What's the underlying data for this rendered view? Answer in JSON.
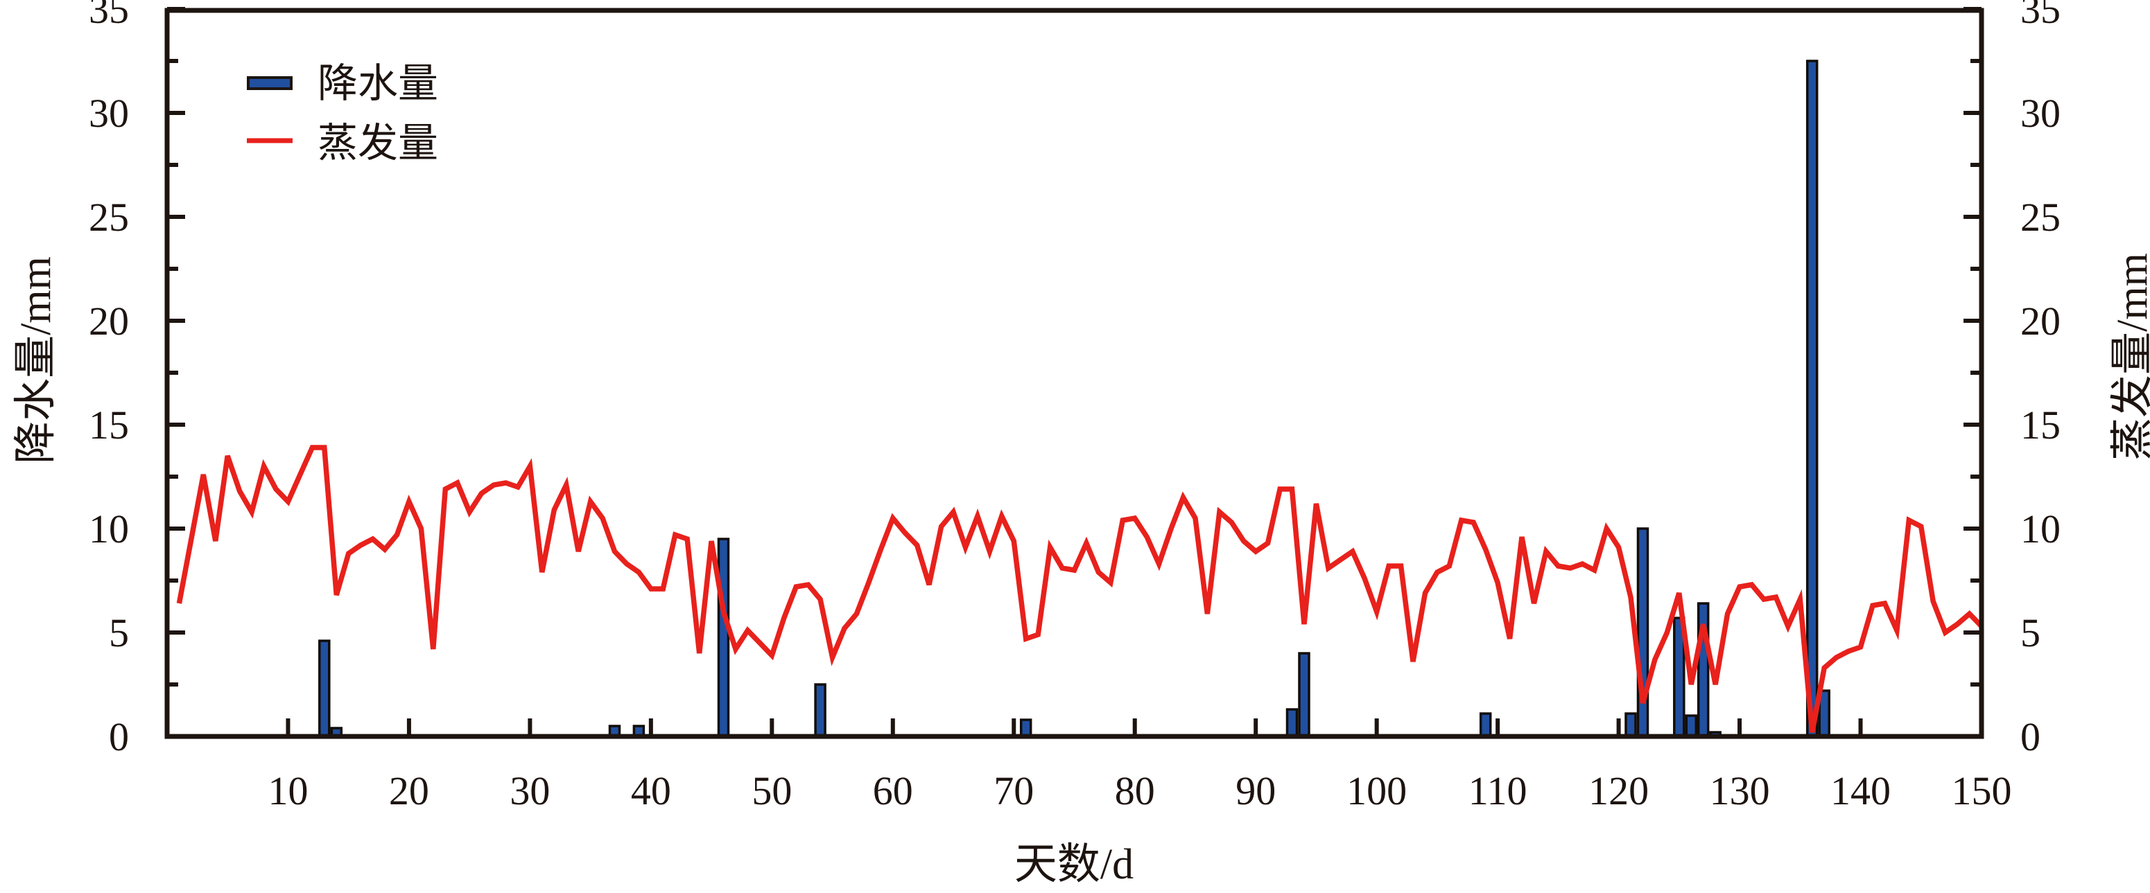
{
  "chart_data": {
    "type": "bar+line",
    "title": "",
    "xlabel": "天数/d",
    "ylabel_left": "降水量/mm",
    "ylabel_right": "蒸发量/mm",
    "xlim": [
      0,
      150
    ],
    "ylim_left": [
      0,
      35
    ],
    "ylim_right": [
      0,
      35
    ],
    "xticks": [
      10,
      20,
      30,
      40,
      50,
      60,
      70,
      80,
      90,
      100,
      110,
      120,
      130,
      140,
      150
    ],
    "yticks_major": [
      0,
      5,
      10,
      15,
      20,
      25,
      30,
      35
    ],
    "yticks_minor": [
      2.5,
      7.5,
      12.5,
      17.5,
      22.5,
      27.5,
      32.5
    ],
    "grid": "off",
    "frame": "full-box, ticks pointing inward",
    "legend_position": "upper-left inside plot",
    "series": [
      {
        "name": "降水量",
        "type": "bar",
        "axis": "left",
        "color": "#2150a0",
        "points": [
          {
            "day": 13,
            "value": 4.6
          },
          {
            "day": 14,
            "value": 0.4
          },
          {
            "day": 37,
            "value": 0.5
          },
          {
            "day": 39,
            "value": 0.5
          },
          {
            "day": 46,
            "value": 9.5
          },
          {
            "day": 54,
            "value": 2.5
          },
          {
            "day": 71,
            "value": 0.8
          },
          {
            "day": 93,
            "value": 1.3
          },
          {
            "day": 94,
            "value": 4.0
          },
          {
            "day": 109,
            "value": 1.1
          },
          {
            "day": 121,
            "value": 1.1
          },
          {
            "day": 122,
            "value": 10.0
          },
          {
            "day": 125,
            "value": 5.7
          },
          {
            "day": 126,
            "value": 1.0
          },
          {
            "day": 127,
            "value": 6.4
          },
          {
            "day": 128,
            "value": 0.2
          },
          {
            "day": 136,
            "value": 32.5
          },
          {
            "day": 137,
            "value": 2.2
          }
        ]
      },
      {
        "name": "蒸发量",
        "type": "line",
        "axis": "right",
        "color": "#e8211c",
        "x_start_day": 1,
        "values": [
          6.4,
          9.5,
          12.6,
          9.4,
          13.5,
          11.8,
          10.8,
          13.0,
          11.9,
          11.3,
          12.6,
          13.9,
          13.9,
          6.8,
          8.8,
          9.2,
          9.5,
          9.0,
          9.7,
          11.3,
          10.0,
          4.2,
          11.9,
          12.2,
          10.8,
          11.7,
          12.1,
          12.2,
          12.0,
          13.0,
          7.9,
          10.9,
          12.1,
          8.9,
          11.3,
          10.5,
          8.9,
          8.3,
          7.9,
          7.1,
          7.1,
          9.7,
          9.5,
          4.0,
          9.4,
          6.0,
          4.2,
          5.1,
          4.5,
          3.9,
          5.7,
          7.2,
          7.3,
          6.6,
          3.8,
          5.2,
          5.9,
          7.4,
          9.0,
          10.5,
          9.8,
          9.2,
          7.3,
          10.1,
          10.8,
          9.1,
          10.6,
          8.9,
          10.6,
          9.4,
          4.7,
          4.9,
          9.1,
          8.1,
          8.0,
          9.3,
          7.9,
          7.4,
          10.4,
          10.5,
          9.6,
          8.3,
          10.0,
          11.5,
          10.5,
          5.9,
          10.8,
          10.3,
          9.4,
          8.9,
          9.3,
          11.9,
          11.9,
          5.4,
          11.2,
          8.1,
          8.5,
          8.9,
          7.6,
          6.0,
          8.2,
          8.2,
          3.6,
          6.9,
          7.9,
          8.2,
          10.4,
          10.3,
          9.0,
          7.4,
          4.7,
          9.6,
          6.4,
          8.9,
          8.2,
          8.1,
          8.3,
          8.0,
          10.0,
          9.1,
          6.7,
          1.6,
          3.7,
          5.0,
          6.9,
          2.5,
          5.4,
          2.5,
          5.9,
          7.2,
          7.3,
          6.6,
          6.7,
          5.3,
          6.6,
          0.2,
          3.3,
          3.8,
          4.1,
          4.3,
          6.3,
          6.4,
          5.1,
          10.4,
          10.1,
          6.5,
          5.0,
          5.4,
          5.9,
          5.3
        ]
      }
    ]
  },
  "legend": {
    "items": [
      {
        "label": "降水量",
        "marker": "bar-swatch",
        "color": "#2150a0"
      },
      {
        "label": "蒸发量",
        "marker": "line-swatch",
        "color": "#e8211c"
      }
    ]
  },
  "colors": {
    "precip_blue": "#2150a0",
    "evap_red": "#e8211c",
    "axis_ink": "#1d1410"
  }
}
